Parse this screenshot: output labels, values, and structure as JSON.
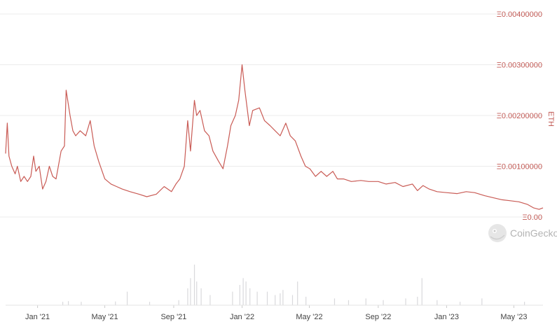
{
  "chart_data": {
    "type": "line",
    "ylabel": "ETH",
    "watermark": "CoinGecko",
    "y_ticks": [
      "Ξ0.00",
      "Ξ0.00100000",
      "Ξ0.00200000",
      "Ξ0.00300000",
      "Ξ0.00400000"
    ],
    "ylim": [
      0,
      0.004
    ],
    "x_ticks": [
      "Jan '21",
      "May '21",
      "Sep '21",
      "Jan '22",
      "May '22",
      "Sep '22",
      "Jan '23",
      "May '23"
    ],
    "x_tick_dates": [
      "2021-01-01",
      "2021-05-01",
      "2021-09-01",
      "2022-01-01",
      "2022-05-01",
      "2022-09-01",
      "2023-01-01",
      "2023-05-01"
    ],
    "grid": true,
    "colors": {
      "line": "#c95b55",
      "volume": "#d9d9dc",
      "grid": "#ececec"
    },
    "series": [
      {
        "values": [
          [
            "2020-11-05",
            0.00125
          ],
          [
            "2020-11-08",
            0.00185
          ],
          [
            "2020-11-11",
            0.0012
          ],
          [
            "2020-11-16",
            0.001
          ],
          [
            "2020-11-22",
            0.00085
          ],
          [
            "2020-11-26",
            0.001
          ],
          [
            "2020-12-02",
            0.0007
          ],
          [
            "2020-12-08",
            0.0008
          ],
          [
            "2020-12-14",
            0.0007
          ],
          [
            "2020-12-20",
            0.0008
          ],
          [
            "2020-12-25",
            0.0012
          ],
          [
            "2020-12-29",
            0.0009
          ],
          [
            "2021-01-04",
            0.001
          ],
          [
            "2021-01-10",
            0.00055
          ],
          [
            "2021-01-16",
            0.0007
          ],
          [
            "2021-01-22",
            0.001
          ],
          [
            "2021-01-28",
            0.0008
          ],
          [
            "2021-02-03",
            0.00075
          ],
          [
            "2021-02-12",
            0.0013
          ],
          [
            "2021-02-18",
            0.0014
          ],
          [
            "2021-02-21",
            0.0025
          ],
          [
            "2021-02-28",
            0.002
          ],
          [
            "2021-03-05",
            0.0017
          ],
          [
            "2021-03-10",
            0.0016
          ],
          [
            "2021-03-18",
            0.0017
          ],
          [
            "2021-03-28",
            0.0016
          ],
          [
            "2021-04-05",
            0.0019
          ],
          [
            "2021-04-12",
            0.0014
          ],
          [
            "2021-04-20",
            0.0011
          ],
          [
            "2021-05-01",
            0.00075
          ],
          [
            "2021-05-12",
            0.00065
          ],
          [
            "2021-05-22",
            0.0006
          ],
          [
            "2021-06-01",
            0.00055
          ],
          [
            "2021-06-15",
            0.0005
          ],
          [
            "2021-07-01",
            0.00045
          ],
          [
            "2021-07-15",
            0.0004
          ],
          [
            "2021-08-01",
            0.00045
          ],
          [
            "2021-08-15",
            0.0006
          ],
          [
            "2021-08-28",
            0.0005
          ],
          [
            "2021-09-05",
            0.00065
          ],
          [
            "2021-09-12",
            0.00075
          ],
          [
            "2021-09-20",
            0.001
          ],
          [
            "2021-09-26",
            0.0019
          ],
          [
            "2021-10-01",
            0.0013
          ],
          [
            "2021-10-08",
            0.0023
          ],
          [
            "2021-10-12",
            0.002
          ],
          [
            "2021-10-18",
            0.0021
          ],
          [
            "2021-10-26",
            0.0017
          ],
          [
            "2021-11-03",
            0.0016
          ],
          [
            "2021-11-10",
            0.0013
          ],
          [
            "2021-11-20",
            0.0011
          ],
          [
            "2021-11-28",
            0.00095
          ],
          [
            "2021-12-06",
            0.0014
          ],
          [
            "2021-12-12",
            0.0018
          ],
          [
            "2021-12-20",
            0.002
          ],
          [
            "2021-12-26",
            0.0023
          ],
          [
            "2022-01-01",
            0.003
          ],
          [
            "2022-01-06",
            0.0025
          ],
          [
            "2022-01-14",
            0.0018
          ],
          [
            "2022-01-20",
            0.0021
          ],
          [
            "2022-02-01",
            0.00215
          ],
          [
            "2022-02-10",
            0.0019
          ],
          [
            "2022-02-20",
            0.0018
          ],
          [
            "2022-03-01",
            0.0017
          ],
          [
            "2022-03-10",
            0.0016
          ],
          [
            "2022-03-20",
            0.00185
          ],
          [
            "2022-03-28",
            0.0016
          ],
          [
            "2022-04-06",
            0.0015
          ],
          [
            "2022-04-16",
            0.0012
          ],
          [
            "2022-04-24",
            0.001
          ],
          [
            "2022-05-02",
            0.00095
          ],
          [
            "2022-05-12",
            0.0008
          ],
          [
            "2022-05-22",
            0.0009
          ],
          [
            "2022-06-01",
            0.0008
          ],
          [
            "2022-06-12",
            0.0009
          ],
          [
            "2022-06-20",
            0.00075
          ],
          [
            "2022-07-01",
            0.00075
          ],
          [
            "2022-07-15",
            0.0007
          ],
          [
            "2022-08-01",
            0.00072
          ],
          [
            "2022-08-15",
            0.0007
          ],
          [
            "2022-09-01",
            0.0007
          ],
          [
            "2022-09-15",
            0.00065
          ],
          [
            "2022-10-01",
            0.00068
          ],
          [
            "2022-10-15",
            0.0006
          ],
          [
            "2022-11-01",
            0.00065
          ],
          [
            "2022-11-10",
            0.00052
          ],
          [
            "2022-11-20",
            0.00062
          ],
          [
            "2022-12-01",
            0.00055
          ],
          [
            "2022-12-15",
            0.0005
          ],
          [
            "2023-01-01",
            0.00048
          ],
          [
            "2023-01-20",
            0.00046
          ],
          [
            "2023-02-05",
            0.0005
          ],
          [
            "2023-02-20",
            0.00048
          ],
          [
            "2023-03-10",
            0.00042
          ],
          [
            "2023-03-25",
            0.00038
          ],
          [
            "2023-04-10",
            0.00034
          ],
          [
            "2023-04-25",
            0.00032
          ],
          [
            "2023-05-10",
            0.0003
          ],
          [
            "2023-05-25",
            0.00025
          ],
          [
            "2023-06-05",
            0.00018
          ],
          [
            "2023-06-15",
            0.00015
          ],
          [
            "2023-06-22",
            0.00018
          ]
        ]
      }
    ],
    "volume": [
      [
        "2021-02-15",
        1.0
      ],
      [
        "2021-02-25",
        1.2
      ],
      [
        "2021-03-20",
        1.0
      ],
      [
        "2021-05-20",
        1.1
      ],
      [
        "2021-06-10",
        4.0
      ],
      [
        "2021-07-20",
        1.0
      ],
      [
        "2021-09-10",
        1.5
      ],
      [
        "2021-09-26",
        5.0
      ],
      [
        "2021-10-01",
        8.0
      ],
      [
        "2021-10-08",
        12.0
      ],
      [
        "2021-10-12",
        7.0
      ],
      [
        "2021-10-20",
        5.0
      ],
      [
        "2021-11-05",
        3.0
      ],
      [
        "2021-12-15",
        4.0
      ],
      [
        "2021-12-28",
        6.0
      ],
      [
        "2022-01-03",
        8.0
      ],
      [
        "2022-01-08",
        7.0
      ],
      [
        "2022-01-15",
        5.0
      ],
      [
        "2022-01-28",
        4.0
      ],
      [
        "2022-02-15",
        4.0
      ],
      [
        "2022-03-01",
        3.0
      ],
      [
        "2022-03-10",
        3.5
      ],
      [
        "2022-03-15",
        4.5
      ],
      [
        "2022-04-01",
        3.0
      ],
      [
        "2022-04-10",
        7.0
      ],
      [
        "2022-04-25",
        2.5
      ],
      [
        "2022-06-15",
        2.0
      ],
      [
        "2022-07-10",
        1.5
      ],
      [
        "2022-08-10",
        2.0
      ],
      [
        "2022-09-10",
        1.5
      ],
      [
        "2022-10-20",
        2.0
      ],
      [
        "2022-11-10",
        2.5
      ],
      [
        "2022-11-18",
        8.0
      ],
      [
        "2022-12-15",
        1.5
      ],
      [
        "2023-01-25",
        1.0
      ],
      [
        "2023-03-05",
        2.0
      ],
      [
        "2023-05-20",
        1.0
      ]
    ]
  }
}
